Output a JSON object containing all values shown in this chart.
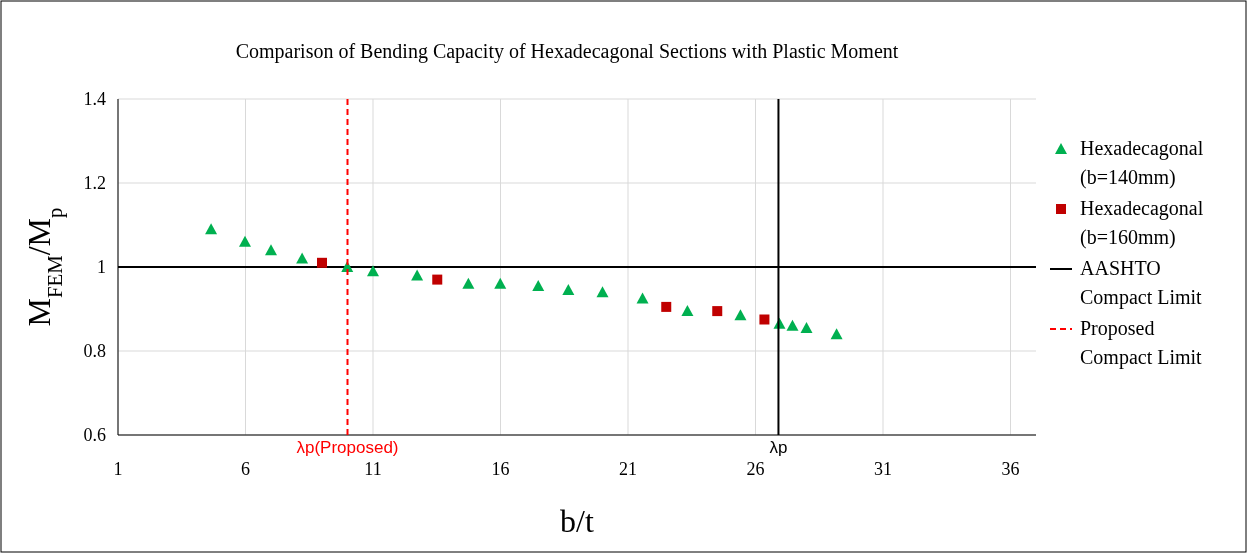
{
  "chart_data": {
    "type": "scatter",
    "title": "Comparison of Bending Capacity of Hexadecagonal Sections with Plastic Moment",
    "xlabel": "b/t",
    "ylabel": "M$_{FEM}$/M$_{p}$",
    "xlim": [
      1,
      37
    ],
    "xticks": [
      1,
      6,
      11,
      16,
      21,
      26,
      31,
      36
    ],
    "ylim": [
      0.6,
      1.4
    ],
    "yticks": [
      0.6,
      0.8,
      1,
      1.2,
      1.4
    ],
    "grid": true,
    "legend": "right",
    "series": [
      {
        "name": "Hexadecagonal (b=140mm)",
        "marker": "triangle",
        "color": "#00b050",
        "x": [
          4.65,
          5.98,
          7.0,
          8.22,
          9.99,
          11.0,
          12.73,
          14.74,
          15.99,
          17.48,
          18.66,
          20.0,
          21.57,
          23.33,
          25.41,
          26.94,
          27.45,
          28.0,
          29.18
        ],
        "values": [
          1.09,
          1.06,
          1.04,
          1.02,
          1.0,
          0.99,
          0.98,
          0.96,
          0.96,
          0.955,
          0.945,
          0.94,
          0.925,
          0.895,
          0.885,
          0.865,
          0.86,
          0.855,
          0.84
        ]
      },
      {
        "name": "Hexadecagonal (b=160mm)",
        "marker": "square",
        "color": "#c00000",
        "x": [
          9.0,
          13.52,
          22.5,
          24.5,
          26.35
        ],
        "values": [
          1.01,
          0.97,
          0.905,
          0.895,
          0.875
        ]
      },
      {
        "name": "AASHTO Compact Limit",
        "type": "line",
        "line_style": "solid",
        "color": "#000000",
        "x": [
          26.9,
          26.9
        ],
        "values": [
          0.6,
          1.4
        ]
      },
      {
        "name": "Proposed Compact Limit",
        "type": "line",
        "line_style": "dashed",
        "color": "#ff0000",
        "x": [
          10,
          10
        ],
        "values": [
          0.6,
          1.4
        ]
      }
    ],
    "ref_lines": [
      {
        "axis": "y",
        "value": 1,
        "color": "#000000"
      }
    ],
    "annotations": [
      {
        "text": "λp(Proposed)",
        "x": 10,
        "y": 0.6
      },
      {
        "text": "λp",
        "x": 26.9,
        "y": 0.6
      }
    ]
  }
}
